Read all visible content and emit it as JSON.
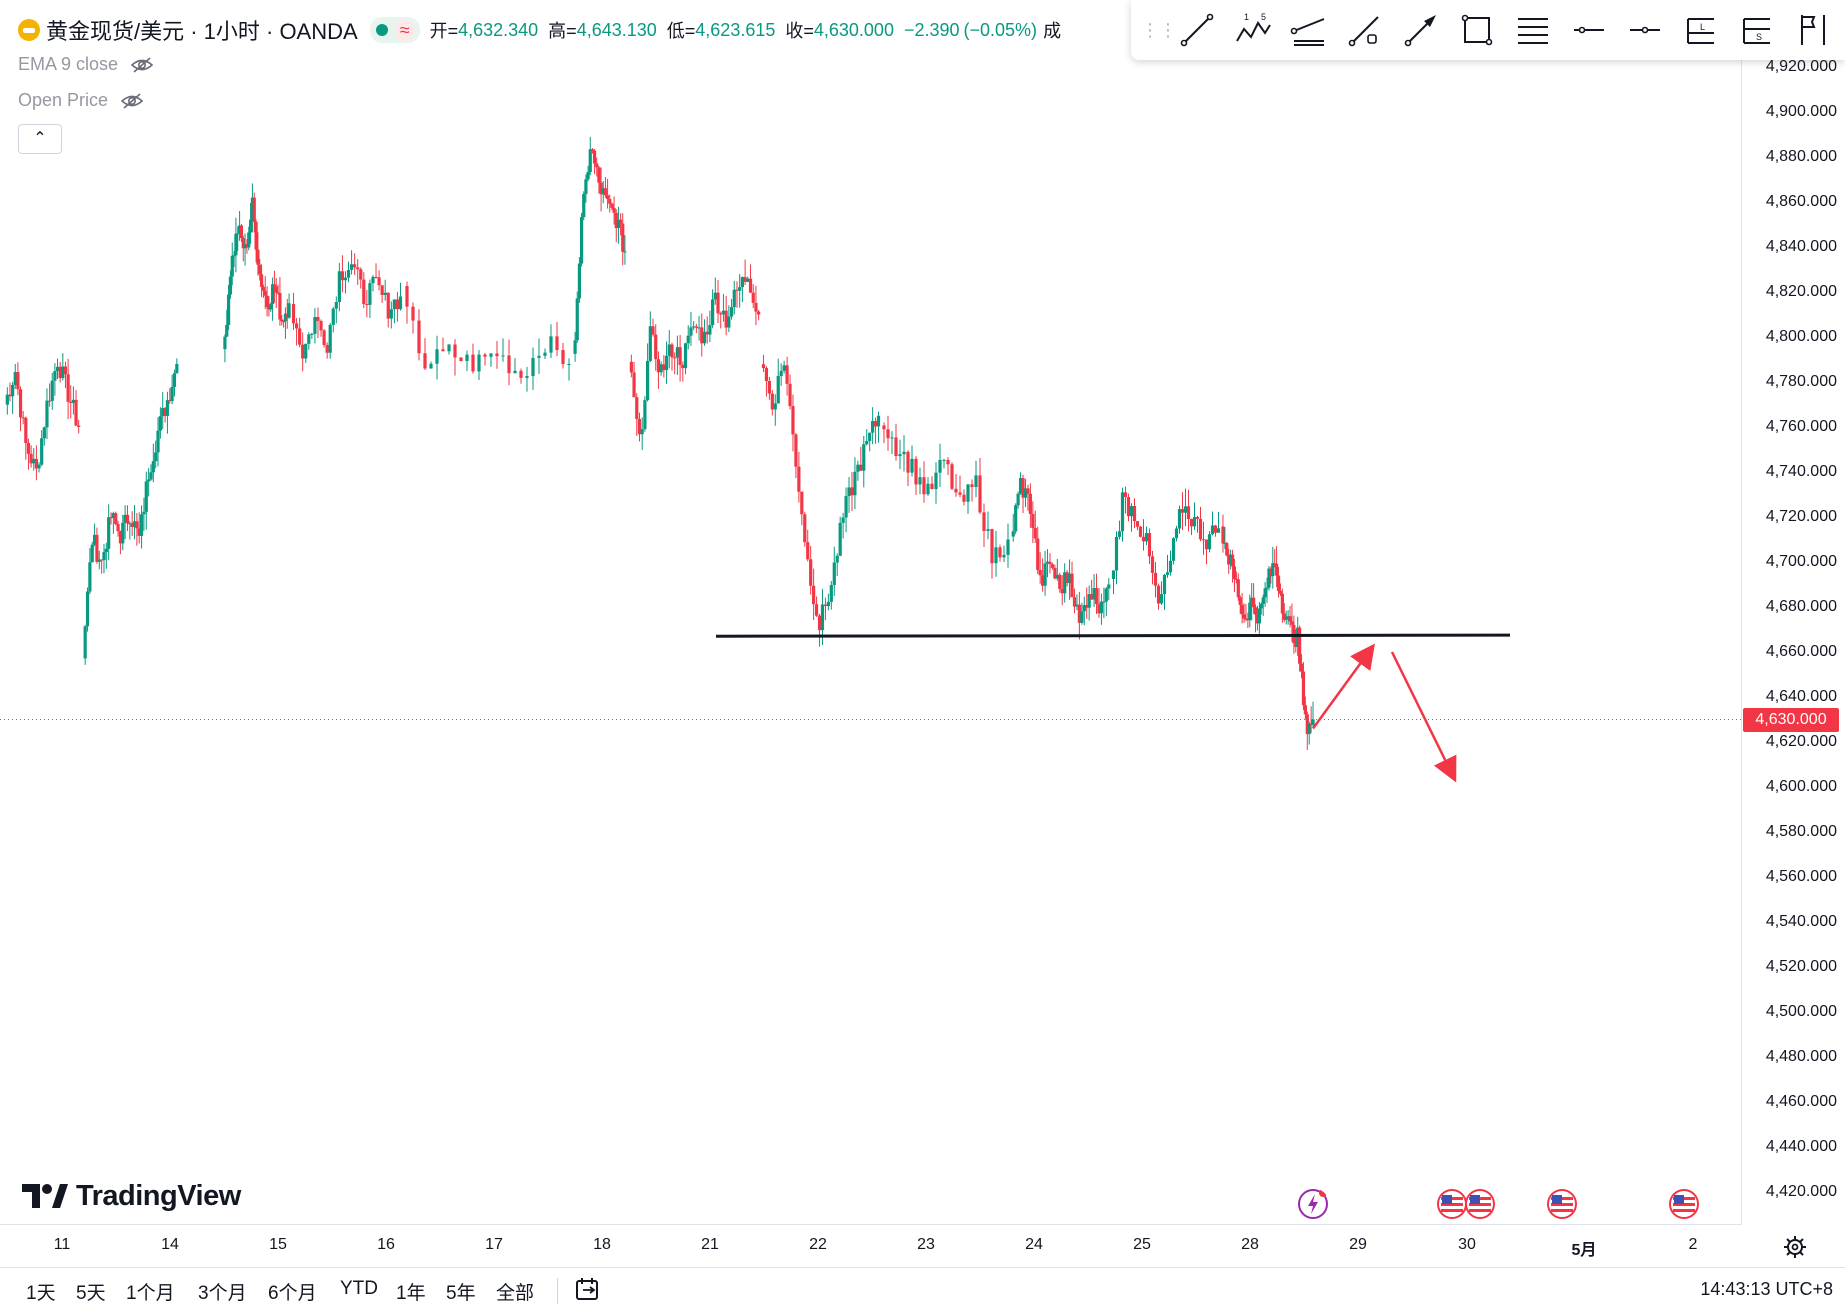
{
  "legend": {
    "symbol_title": "黄金现货/美元 · 1小时 · OANDA",
    "status_wave": "≈",
    "ohlc": [
      {
        "key": "开=",
        "value": "4,632.340"
      },
      {
        "key": "高=",
        "value": "4,643.130"
      },
      {
        "key": "低=",
        "value": "4,623.615"
      },
      {
        "key": "收=",
        "value": "4,630.000"
      }
    ],
    "change": "−2.390",
    "change_pct": "(−0.05%)",
    "volume_cut": "成"
  },
  "indicators": [
    {
      "label": "EMA 9 close"
    },
    {
      "label": "Open Price"
    }
  ],
  "collapse_label": "⌃",
  "logo_text": "TradingView",
  "drawing_tools": [
    {
      "name": "trend-line-tool-icon"
    },
    {
      "name": "elliott-wave-tool-icon",
      "label_a": "1",
      "label_b": "5"
    },
    {
      "name": "parallel-channel-tool-icon"
    },
    {
      "name": "path-tool-icon"
    },
    {
      "name": "arrow-tool-icon"
    },
    {
      "name": "rectangle-tool-icon"
    },
    {
      "name": "fib-retracement-tool-icon"
    },
    {
      "name": "horizontal-ray-tool-icon"
    },
    {
      "name": "horizontal-line-tool-icon"
    },
    {
      "name": "long-position-tool-icon",
      "label": "L"
    },
    {
      "name": "short-position-tool-icon",
      "label": "S"
    },
    {
      "name": "flag-tool-icon"
    }
  ],
  "price_axis": {
    "labels": [
      "4,920.000",
      "4,900.000",
      "4,880.000",
      "4,860.000",
      "4,840.000",
      "4,820.000",
      "4,800.000",
      "4,780.000",
      "4,760.000",
      "4,740.000",
      "4,720.000",
      "4,700.000",
      "4,680.000",
      "4,660.000",
      "4,640.000",
      "4,620.000",
      "4,600.000",
      "4,580.000",
      "4,560.000",
      "4,540.000",
      "4,520.000",
      "4,500.000",
      "4,480.000",
      "4,460.000",
      "4,440.000",
      "4,420.000"
    ],
    "last_price": "4,630.000",
    "last_price_color": "#f23645"
  },
  "time_axis": {
    "labels": [
      "11",
      "14",
      "15",
      "16",
      "17",
      "18",
      "21",
      "22",
      "23",
      "24",
      "25",
      "28",
      "29",
      "30",
      "5月",
      "2"
    ]
  },
  "range_buttons": [
    "1天",
    "5天",
    "1个月",
    "3个月",
    "6个月",
    "YTD",
    "1年",
    "5年",
    "全部"
  ],
  "clock": "14:43:13 UTC+8",
  "colors": {
    "up": "#089981",
    "down": "#f23645",
    "support_line": "#131722",
    "arrow": "#f23645"
  },
  "chart_data": {
    "type": "candlestick",
    "symbol": "XAUUSD",
    "interval": "1h",
    "ylim": [
      4410,
      4930
    ],
    "x_ticks": [
      "11",
      "14",
      "15",
      "16",
      "17",
      "18",
      "21",
      "22",
      "23",
      "24",
      "25",
      "28",
      "29",
      "30",
      "5月",
      "2"
    ],
    "sessions": [
      {
        "day": "11",
        "open": 4770,
        "close": 4760,
        "path": [
          4770,
          4785,
          4752,
          4740,
          4770,
          4790,
          4775,
          4760
        ]
      },
      {
        "day": "14",
        "open": 4660,
        "close": 4788,
        "path": [
          4660,
          4710,
          4700,
          4720,
          4712,
          4722,
          4710,
          4740,
          4758,
          4772,
          4788
        ]
      },
      {
        "day": "15",
        "open": 4790,
        "close": 4815,
        "path": [
          4790,
          4830,
          4848,
          4838,
          4858,
          4828,
          4815,
          4823,
          4808,
          4815
        ]
      },
      {
        "day": "16",
        "open": 4815,
        "close": 4818,
        "path": [
          4815,
          4793,
          4808,
          4798,
          4828,
          4833,
          4818,
          4823,
          4813,
          4818
        ]
      },
      {
        "day": "17",
        "open": 4818,
        "close": 4788,
        "path": [
          4818,
          4788,
          4793,
          4788,
          4793,
          4783,
          4798,
          4788
        ]
      },
      {
        "day": "18",
        "open": 4788,
        "close": 4838,
        "path": [
          4788,
          4850,
          4885,
          4868,
          4858,
          4853,
          4838
        ]
      },
      {
        "day": "21",
        "open": 4790,
        "close": 4810,
        "path": [
          4790,
          4752,
          4800,
          4785,
          4795,
          4790,
          4805,
          4800,
          4818,
          4808,
          4820,
          4828,
          4810
        ]
      },
      {
        "day": "22",
        "open": 4790,
        "close": 4765,
        "path": [
          4790,
          4770,
          4790,
          4745,
          4700,
          4672,
          4690,
          4720,
          4738,
          4752,
          4765
        ]
      },
      {
        "day": "23",
        "open": 4765,
        "close": 4710,
        "path": [
          4765,
          4752,
          4742,
          4730,
          4745,
          4725,
          4735,
          4702,
          4710
        ]
      },
      {
        "day": "24",
        "open": 4710,
        "close": 4690,
        "path": [
          4710,
          4735,
          4725,
          4690,
          4700,
          4688,
          4695,
          4672,
          4688,
          4682,
          4690
        ]
      },
      {
        "day": "25",
        "open": 4690,
        "close": 4715,
        "path": [
          4690,
          4728,
          4722,
          4708,
          4680,
          4700,
          4725,
          4718,
          4710,
          4715
        ]
      },
      {
        "day": "28",
        "open": 4715,
        "close": 4630,
        "path": [
          4715,
          4702,
          4690,
          4675,
          4682,
          4676,
          4690,
          4700,
          4682,
          4670,
          4666,
          4628,
          4630
        ]
      }
    ],
    "drawings": {
      "support_line": {
        "price": 4667,
        "from": "21",
        "to": "30"
      },
      "arrow_up": {
        "from_price": 4626,
        "to_price": 4662
      },
      "arrow_down": {
        "from_price": 4660,
        "to_price": 4604
      }
    }
  }
}
